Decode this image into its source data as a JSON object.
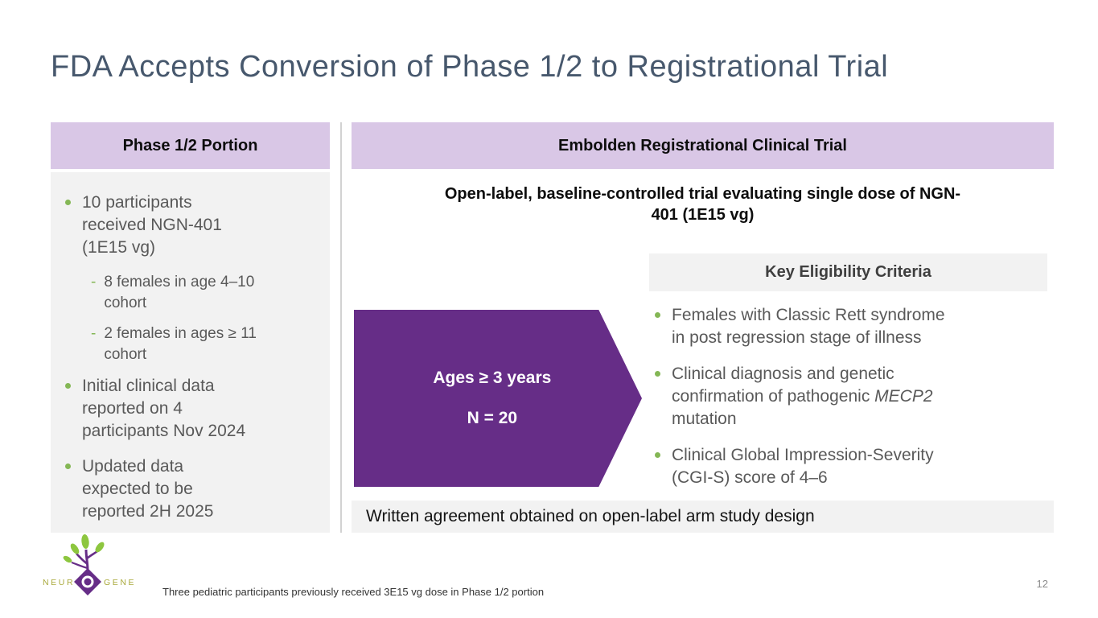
{
  "colors": {
    "title_slate": "#47586d",
    "header_lavender": "#d9c7e6",
    "panel_gray": "#f2f2f2",
    "arrow_purple": "#662d87",
    "bullet_green": "#84b755",
    "body_text_gray": "#595959",
    "logo_olive": "#a9a93c",
    "logo_leaf_green": "#8dc63f"
  },
  "slide": {
    "title": "FDA Accepts Conversion of Phase 1/2 to Registrational Trial",
    "footnote": "Three pediatric participants previously received 3E15 vg dose in Phase 1/2 portion",
    "page_number": "12"
  },
  "left_panel": {
    "header": "Phase 1/2 Portion",
    "bullets": [
      {
        "segments": [
          {
            "t": "10 participants received NGN-401 (1E15 vg)"
          }
        ],
        "subs": [
          "8 females in age 4–10 cohort",
          "2 females in ages ≥ 11 cohort"
        ]
      },
      {
        "segments": [
          {
            "t": "Initial clinical data reported on 4 participants Nov 2024"
          }
        ],
        "subs": []
      },
      {
        "segments": [
          {
            "t": "Updated data expected to be reported 2H 2025"
          }
        ],
        "subs": []
      }
    ]
  },
  "right_panel": {
    "header": "Embolden Registrational Clinical Trial",
    "subtitle": "Open-label, baseline-controlled trial evaluating single dose of NGN-401 (1E15 vg)",
    "eligibility_header": "Key Eligibility Criteria",
    "arrow": {
      "lines": [
        "Ages ≥ 3 years",
        "N = 20"
      ]
    },
    "eligibility_bullets": [
      {
        "segments": [
          {
            "t": "Females with Classic Rett syndrome in post regression stage of illness"
          }
        ],
        "subs": []
      },
      {
        "segments": [
          {
            "t": "Clinical diagnosis and genetic confirmation of pathogenic "
          },
          {
            "t": "MECP2",
            "italic": true
          },
          {
            "t": " mutation"
          }
        ],
        "subs": []
      },
      {
        "segments": [
          {
            "t": "Clinical Global Impression-Severity (CGI-S) score of 4–6"
          }
        ],
        "subs": []
      }
    ],
    "bottom_note": "Written agreement obtained on open-label arm study design"
  },
  "logo": {
    "left_text": "NEUR",
    "right_text": "GENE"
  }
}
